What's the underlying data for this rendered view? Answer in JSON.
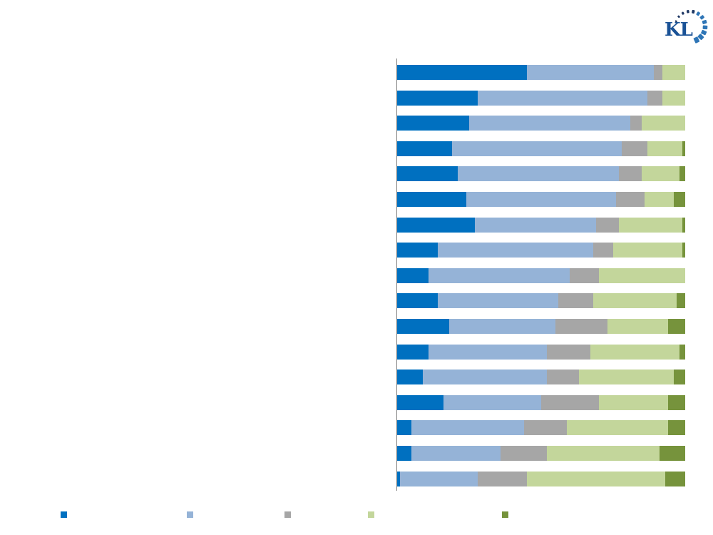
{
  "logo": {
    "text": "KL",
    "text_color": "#1A5296",
    "dot_color_dark": "#1F3864",
    "dot_color_light": "#2E75B6"
  },
  "colors": {
    "background": "#FFFFFF",
    "axis_line": "#808080",
    "series_blue": "#0070C0",
    "series_light_blue": "#95B3D7",
    "series_gray": "#A6A6A6",
    "series_light_green": "#C3D69B",
    "series_dark_green": "#76933C"
  },
  "chart_data": {
    "type": "bar",
    "orientation": "horizontal",
    "stacked": true,
    "stack_total": 100,
    "title": "",
    "xlabel": "",
    "ylabel": "",
    "xlim": [
      0,
      100
    ],
    "grid": false,
    "axis_labels_visible": false,
    "categories": [
      "row-1",
      "row-2",
      "row-3",
      "row-4",
      "row-5",
      "row-6",
      "row-7",
      "row-8",
      "row-9",
      "row-10",
      "row-11",
      "row-12",
      "row-13",
      "row-14",
      "row-15",
      "row-16",
      "row-17"
    ],
    "series": [
      {
        "name": "series-1-blue",
        "color": "#0070C0",
        "values": [
          45,
          28,
          25,
          19,
          21,
          24,
          27,
          14,
          11,
          14,
          18,
          11,
          9,
          16,
          5,
          5,
          1
        ]
      },
      {
        "name": "series-2-light-blue",
        "color": "#95B3D7",
        "values": [
          44,
          59,
          56,
          59,
          56,
          52,
          42,
          54,
          49,
          42,
          37,
          41,
          43,
          34,
          39,
          31,
          27
        ]
      },
      {
        "name": "series-3-gray",
        "color": "#A6A6A6",
        "values": [
          3,
          5,
          4,
          9,
          8,
          10,
          8,
          7,
          10,
          12,
          18,
          15,
          11,
          20,
          15,
          16,
          17
        ]
      },
      {
        "name": "series-4-light-green",
        "color": "#C3D69B",
        "values": [
          8,
          8,
          15,
          12,
          13,
          10,
          22,
          24,
          30,
          29,
          21,
          31,
          33,
          24,
          35,
          39,
          48
        ]
      },
      {
        "name": "series-5-dark-green",
        "color": "#76933C",
        "values": [
          0,
          0,
          0,
          1,
          2,
          4,
          1,
          1,
          0,
          3,
          6,
          2,
          4,
          6,
          6,
          9,
          7
        ]
      }
    ],
    "legend": {
      "position": "bottom",
      "labels_visible": false,
      "items": [
        {
          "name": "legend-blue",
          "color": "#0070C0",
          "label": ""
        },
        {
          "name": "legend-light-blue",
          "color": "#95B3D7",
          "label": ""
        },
        {
          "name": "legend-gray",
          "color": "#A6A6A6",
          "label": ""
        },
        {
          "name": "legend-light-green",
          "color": "#C3D69B",
          "label": ""
        },
        {
          "name": "legend-dark-green",
          "color": "#76933C",
          "label": ""
        }
      ]
    }
  }
}
